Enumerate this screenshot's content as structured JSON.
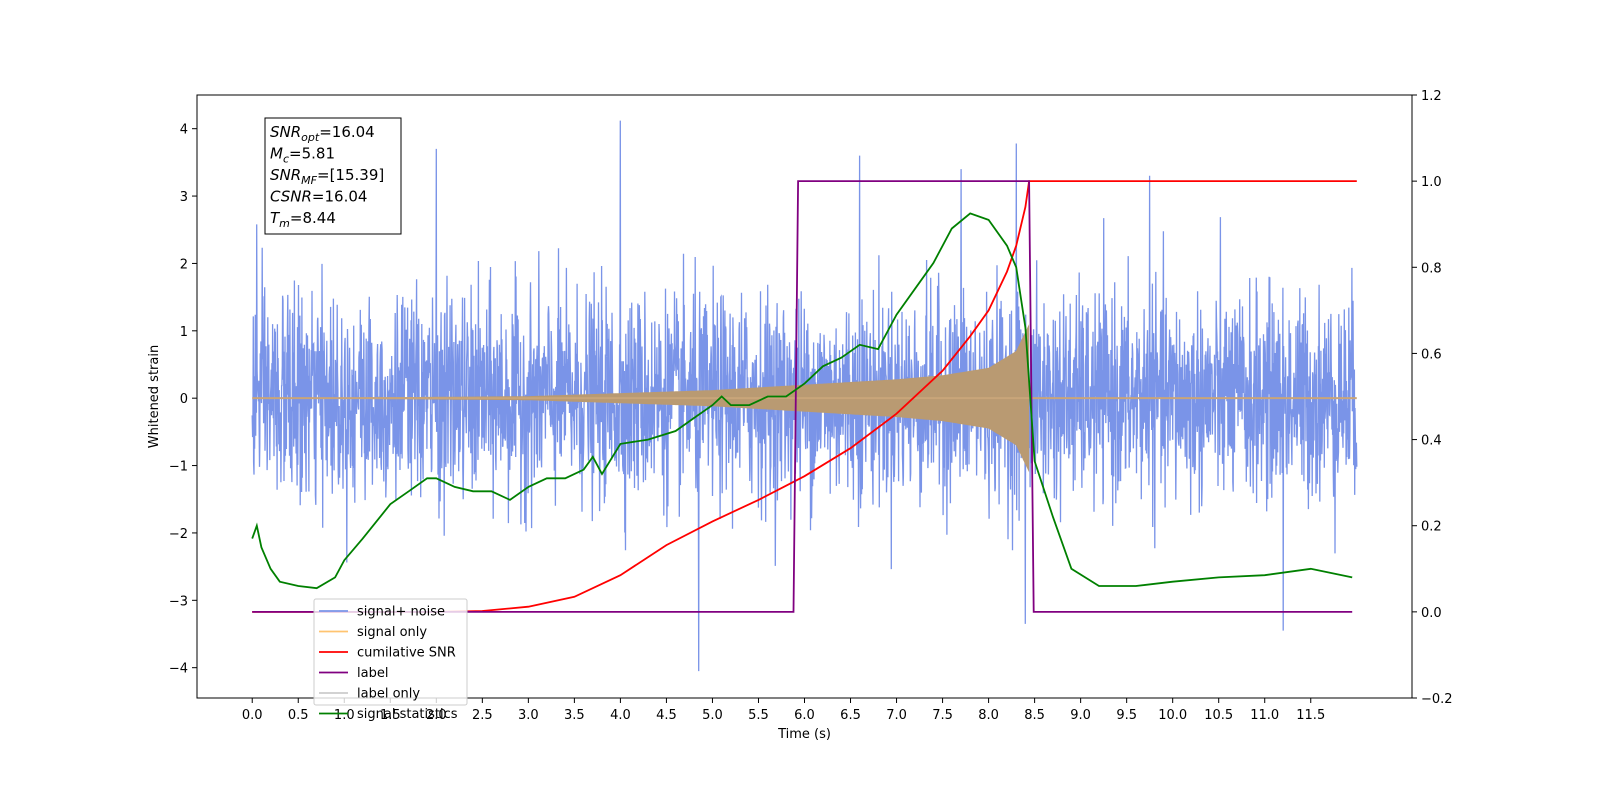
{
  "chart_data": {
    "type": "line",
    "xlabel": "Time (s)",
    "ylabel_left": "Whitened strain",
    "ylabel_right": "",
    "xlim": [
      -0.6,
      12.6
    ],
    "ylim_left": [
      -4.45,
      4.5
    ],
    "ylim_right": [
      -0.2,
      1.2
    ],
    "x_ticks": [
      0.0,
      0.5,
      1.0,
      1.5,
      2.0,
      2.5,
      3.0,
      3.5,
      4.0,
      4.5,
      5.0,
      5.5,
      6.0,
      6.5,
      7.0,
      7.5,
      8.0,
      8.5,
      9.0,
      9.5,
      10.0,
      10.5,
      11.0,
      11.5
    ],
    "x_tick_labels": [
      "0.0",
      "0.5",
      "1.0",
      "1.5",
      "2.0",
      "2.5",
      "3.0",
      "3.5",
      "4.0",
      "4.5",
      "5.0",
      "5.5",
      "6.0",
      "6.5",
      "7.0",
      "7.5",
      "8.0",
      "8.5",
      "9.0",
      "9.5",
      "10.0",
      "10.5",
      "11.0",
      "11.5"
    ],
    "y_ticks_left": [
      -4,
      -3,
      -2,
      -1,
      0,
      1,
      2,
      3,
      4
    ],
    "y_tick_labels_left": [
      "−4",
      "−3",
      "−2",
      "−1",
      "0",
      "1",
      "2",
      "3",
      "4"
    ],
    "y_ticks_right": [
      -0.2,
      0.0,
      0.2,
      0.4,
      0.6,
      0.8,
      1.0,
      1.2
    ],
    "y_tick_labels_right": [
      "−0.2",
      "0.0",
      "0.2",
      "0.4",
      "0.6",
      "0.8",
      "1.0",
      "1.2"
    ],
    "grid": false,
    "legend_placement": "lower-left",
    "noise": {
      "x_range": [
        0.0,
        12.0
      ],
      "typical_amplitude": 1.8,
      "max_value": 4.12,
      "min_value": -4.05,
      "spikes": [
        {
          "x": 0.05,
          "y": 2.58
        },
        {
          "x": 2.0,
          "y": 3.7
        },
        {
          "x": 4.0,
          "y": 4.12
        },
        {
          "x": 4.85,
          "y": -4.05
        },
        {
          "x": 6.6,
          "y": 3.6
        },
        {
          "x": 7.7,
          "y": 3.4
        },
        {
          "x": 8.3,
          "y": 3.78
        },
        {
          "x": 8.4,
          "y": -3.35
        },
        {
          "x": 9.75,
          "y": 3.3
        },
        {
          "x": 11.2,
          "y": -3.45
        }
      ]
    },
    "signal": {
      "x_range": [
        0.0,
        8.44
      ],
      "t_merge": 8.44,
      "peak_amplitude": 1.1,
      "amplitude_points": [
        [
          0.0,
          0.0
        ],
        [
          3.0,
          0.03
        ],
        [
          5.0,
          0.12
        ],
        [
          6.0,
          0.2
        ],
        [
          7.0,
          0.28
        ],
        [
          7.5,
          0.34
        ],
        [
          8.0,
          0.45
        ],
        [
          8.3,
          0.7
        ],
        [
          8.44,
          1.1
        ]
      ]
    },
    "series": [
      {
        "name": "signal+ noise",
        "axis": "left",
        "color": "#7a94e8"
      },
      {
        "name": "signal only",
        "axis": "left",
        "color": "#ffc470"
      },
      {
        "name": "cumilative SNR",
        "axis": "right",
        "color": "#ff0000",
        "x": [
          0.0,
          2.0,
          2.5,
          3.0,
          3.5,
          4.0,
          4.5,
          5.0,
          5.5,
          6.0,
          6.5,
          7.0,
          7.5,
          7.8,
          8.0,
          8.2,
          8.3,
          8.4,
          8.44,
          12.0
        ],
        "y": [
          0.0,
          0.0,
          0.002,
          0.012,
          0.035,
          0.085,
          0.155,
          0.21,
          0.26,
          0.315,
          0.38,
          0.46,
          0.56,
          0.64,
          0.7,
          0.79,
          0.85,
          0.94,
          1.0,
          1.0
        ]
      },
      {
        "name": "label",
        "axis": "right",
        "color": "#800080",
        "x": [
          0.0,
          5.88,
          5.93,
          8.44,
          8.49,
          11.95
        ],
        "y": [
          0.0,
          0.0,
          1.0,
          1.0,
          0.0,
          0.0
        ]
      },
      {
        "name": "label only",
        "axis": "right",
        "color": "#cccccc"
      },
      {
        "name": "signal statistics",
        "axis": "right",
        "color": "#008000",
        "x": [
          0.0,
          0.05,
          0.1,
          0.2,
          0.3,
          0.5,
          0.7,
          0.9,
          1.0,
          1.2,
          1.5,
          1.7,
          1.9,
          2.0,
          2.2,
          2.4,
          2.6,
          2.8,
          3.0,
          3.2,
          3.4,
          3.6,
          3.7,
          3.8,
          4.0,
          4.3,
          4.6,
          4.8,
          5.0,
          5.1,
          5.2,
          5.4,
          5.6,
          5.8,
          6.0,
          6.2,
          6.4,
          6.6,
          6.8,
          7.0,
          7.2,
          7.4,
          7.6,
          7.8,
          8.0,
          8.2,
          8.3,
          8.4,
          8.5,
          8.7,
          8.9,
          9.2,
          9.6,
          10.0,
          10.5,
          11.0,
          11.5,
          11.95
        ],
        "y": [
          0.17,
          0.2,
          0.15,
          0.1,
          0.07,
          0.06,
          0.055,
          0.08,
          0.12,
          0.17,
          0.25,
          0.28,
          0.31,
          0.31,
          0.29,
          0.28,
          0.28,
          0.26,
          0.29,
          0.31,
          0.31,
          0.33,
          0.36,
          0.32,
          0.39,
          0.4,
          0.42,
          0.45,
          0.48,
          0.5,
          0.48,
          0.48,
          0.5,
          0.5,
          0.53,
          0.57,
          0.59,
          0.62,
          0.61,
          0.69,
          0.75,
          0.81,
          0.89,
          0.925,
          0.91,
          0.85,
          0.8,
          0.66,
          0.35,
          0.22,
          0.1,
          0.06,
          0.06,
          0.07,
          0.08,
          0.085,
          0.1,
          0.08
        ]
      }
    ],
    "info_box": {
      "lines": [
        {
          "sym": "SNR",
          "sub": "opt",
          "value": "=16.04"
        },
        {
          "sym": "M",
          "sub": "c",
          "value": "=5.81"
        },
        {
          "sym": "SNR",
          "sub": "MF",
          "value": "=[15.39]"
        },
        {
          "sym": "CSNR",
          "sub": "",
          "value": "=16.04"
        },
        {
          "sym": "T",
          "sub": "m",
          "value": "=8.44"
        }
      ]
    }
  }
}
